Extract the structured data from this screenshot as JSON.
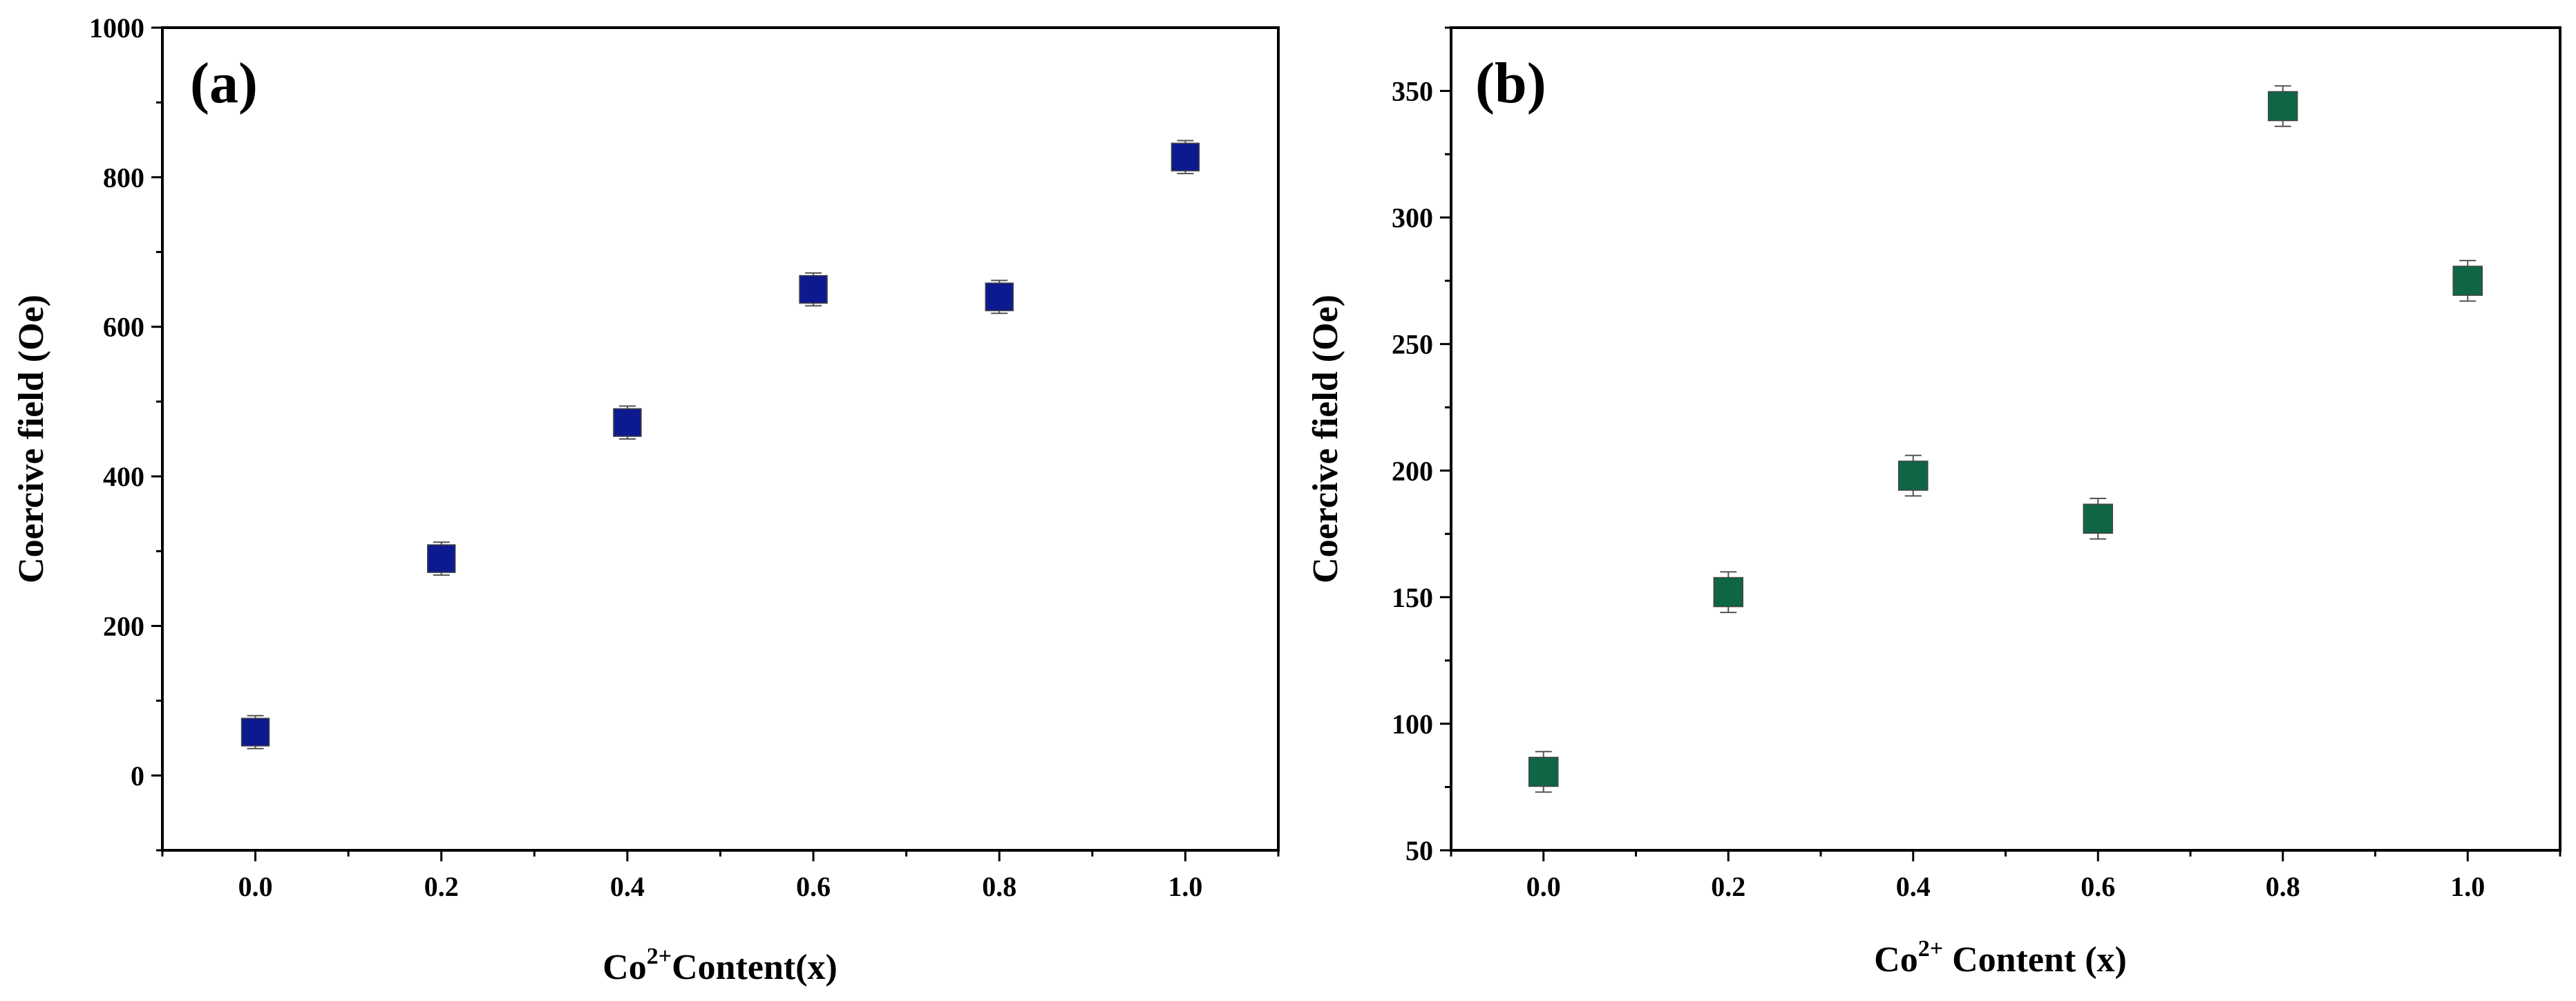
{
  "chart_data": [
    {
      "type": "scatter",
      "panel_label": "(a)",
      "title": "",
      "xlabel_main": "Co",
      "xlabel_sup": "2+",
      "xlabel_rest": "Content(x)",
      "ylabel": "Coercive field (Oe)",
      "xlim": [
        -0.1,
        1.1
      ],
      "ylim": [
        -100,
        1000
      ],
      "xticks": [
        0.0,
        0.2,
        0.4,
        0.6,
        0.8,
        1.0
      ],
      "xtick_labels": [
        "0.0",
        "0.2",
        "0.4",
        "0.6",
        "0.8",
        "1.0"
      ],
      "yticks": [
        0,
        200,
        400,
        600,
        800,
        1000
      ],
      "ytick_labels": [
        "0",
        "200",
        "400",
        "600",
        "800",
        "1000"
      ],
      "marker_color": "#0d1a8f",
      "marker_shape": "square",
      "grid": false,
      "x": [
        0.0,
        0.2,
        0.4,
        0.6,
        0.8,
        1.0
      ],
      "y": [
        58,
        290,
        472,
        650,
        640,
        827
      ],
      "error": [
        22,
        22,
        22,
        22,
        22,
        22
      ]
    },
    {
      "type": "scatter",
      "panel_label": "(b)",
      "title": "",
      "xlabel_main": "Co",
      "xlabel_sup": "2+",
      "xlabel_rest": " Content (x)",
      "ylabel": "Coercive field (Oe)",
      "xlim": [
        -0.1,
        1.1
      ],
      "ylim": [
        50,
        375
      ],
      "xticks": [
        0.0,
        0.2,
        0.4,
        0.6,
        0.8,
        1.0
      ],
      "xtick_labels": [
        "0.0",
        "0.2",
        "0.4",
        "0.6",
        "0.8",
        "1.0"
      ],
      "yticks": [
        50,
        100,
        150,
        200,
        250,
        300,
        350
      ],
      "ytick_labels": [
        "50",
        "100",
        "150",
        "200",
        "250",
        "300",
        "350"
      ],
      "marker_color": "#0f6645",
      "marker_shape": "square",
      "grid": false,
      "x": [
        0.0,
        0.2,
        0.4,
        0.6,
        0.8,
        1.0
      ],
      "y": [
        81,
        152,
        198,
        181,
        344,
        275
      ],
      "error": [
        8,
        8,
        8,
        8,
        8,
        8
      ]
    }
  ]
}
